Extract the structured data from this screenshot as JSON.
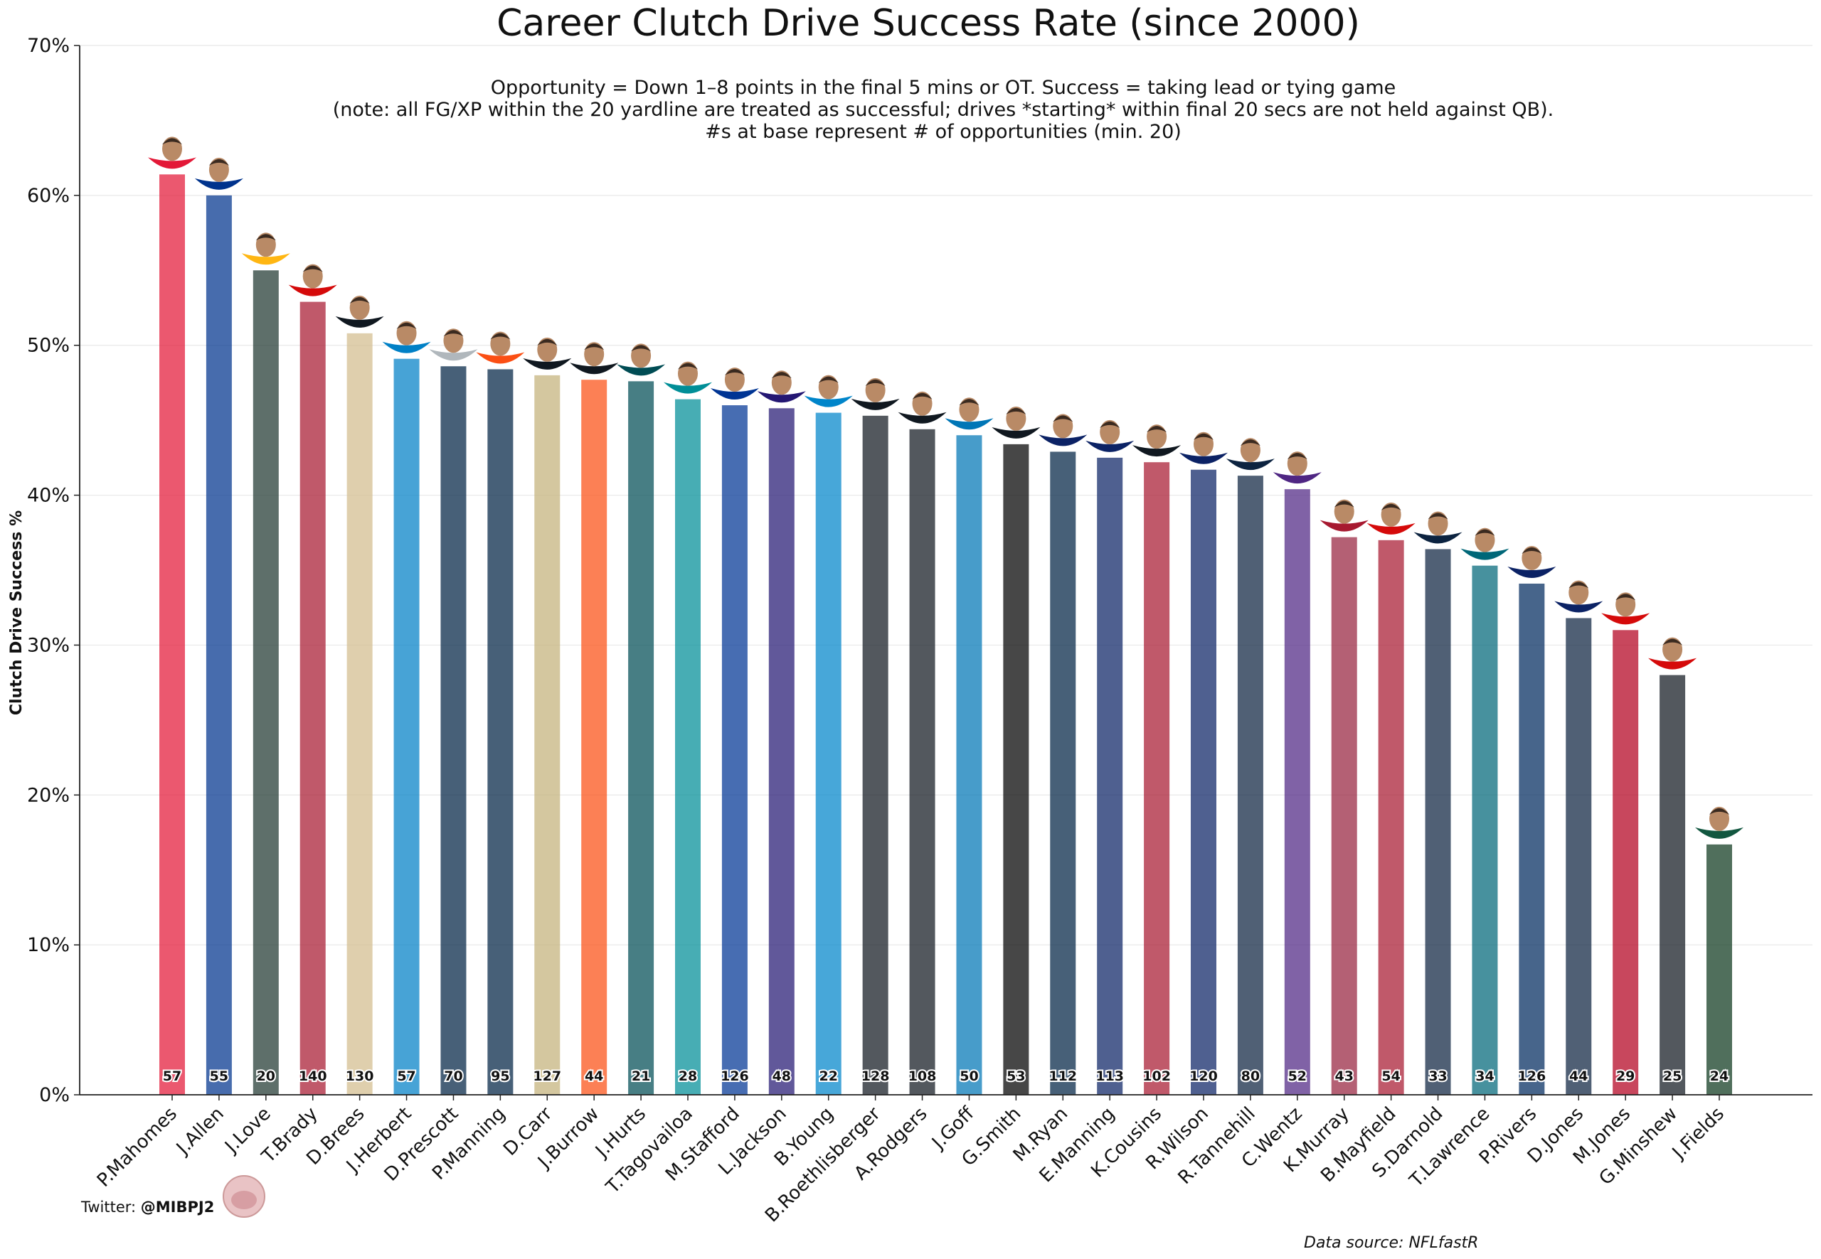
{
  "chart_data": {
    "type": "bar",
    "title": "Career Clutch Drive Success Rate (since 2000)",
    "subtitle_lines": [
      "Opportunity = Down 1–8 points in the final 5 mins or OT. Success = taking lead or tying game",
      "(note: all FG/XP within the 20 yardline are treated as successful; drives *starting* within final 20 secs are not held against QB).",
      "#s at base represent # of opportunities (min. 20)"
    ],
    "ylabel": "Clutch Drive Success %",
    "ylim": [
      0,
      70
    ],
    "yticks": [
      "0%",
      "10%",
      "20%",
      "30%",
      "40%",
      "50%",
      "60%",
      "70%"
    ],
    "grid": "horizontal",
    "categories": [
      "P.Mahomes",
      "J.Allen",
      "J.Love",
      "T.Brady",
      "D.Brees",
      "J.Herbert",
      "D.Prescott",
      "P.Manning",
      "D.Carr",
      "J.Burrow",
      "J.Hurts",
      "T.Tagovailoa",
      "M.Stafford",
      "L.Jackson",
      "B.Young",
      "B.Roethlisberger",
      "A.Rodgers",
      "J.Goff",
      "G.Smith",
      "M.Ryan",
      "E.Manning",
      "K.Cousins",
      "R.Wilson",
      "R.Tannehill",
      "C.Wentz",
      "K.Murray",
      "B.Mayfield",
      "S.Darnold",
      "T.Lawrence",
      "P.Rivers",
      "D.Jones",
      "M.Jones",
      "G.Minshew",
      "J.Fields"
    ],
    "values": [
      61.4,
      60.0,
      55.0,
      52.9,
      50.8,
      49.1,
      48.6,
      48.4,
      48.0,
      47.7,
      47.6,
      46.4,
      46.0,
      45.8,
      45.5,
      45.3,
      44.4,
      44.0,
      43.4,
      42.9,
      42.5,
      42.2,
      41.7,
      41.3,
      40.4,
      37.2,
      37.0,
      36.4,
      35.3,
      34.1,
      31.8,
      31.0,
      28.0,
      16.7
    ],
    "opportunities": [
      "57",
      "55",
      "20",
      "140",
      "130",
      "57",
      "70",
      "95",
      "127",
      "44",
      "21",
      "28",
      "126",
      "48",
      "22",
      "128",
      "108",
      "50",
      "53",
      "112",
      "113",
      "102",
      "120",
      "80",
      "52",
      "43",
      "54",
      "33",
      "34",
      "126",
      "44",
      "29",
      "25",
      "24"
    ],
    "colors": [
      "#E31837",
      "#00338D",
      "#203731",
      "#A71930",
      "#D3BC8D",
      "#0080C6",
      "#002244",
      "#002244",
      "#C4B17A",
      "#FB4F14",
      "#004C54",
      "#008E97",
      "#003594",
      "#241773",
      "#0085CA",
      "#101820",
      "#101820",
      "#0076B6",
      "#000000",
      "#002244",
      "#0B2265",
      "#A71930",
      "#0B2265",
      "#0C2340",
      "#4F2683",
      "#97233F",
      "#A71930",
      "#0C2340",
      "#006778",
      "#002A5E",
      "#0C2340",
      "#B3001E",
      "#101820",
      "#0C371D"
    ],
    "helmet_colors": [
      "#E31837",
      "#00338D",
      "#FFB612",
      "#D50A0A",
      "#101820",
      "#0080C6",
      "#B0B7BC",
      "#FB4F14",
      "#101820",
      "#101820",
      "#004C54",
      "#008E97",
      "#003594",
      "#241773",
      "#0085CA",
      "#101820",
      "#101820",
      "#0076B6",
      "#101820",
      "#0B2265",
      "#0B2265",
      "#101820",
      "#0B2265",
      "#0C2340",
      "#4F2683",
      "#A71930",
      "#D50A0A",
      "#0C2340",
      "#006778",
      "#0B2265",
      "#0B2265",
      "#D50A0A",
      "#D50A0A",
      "#125740"
    ]
  },
  "footer": {
    "credit_prefix": "Twitter: ",
    "credit_handle": "@MIBPJ2",
    "source": "Data source: NFLfastR"
  }
}
